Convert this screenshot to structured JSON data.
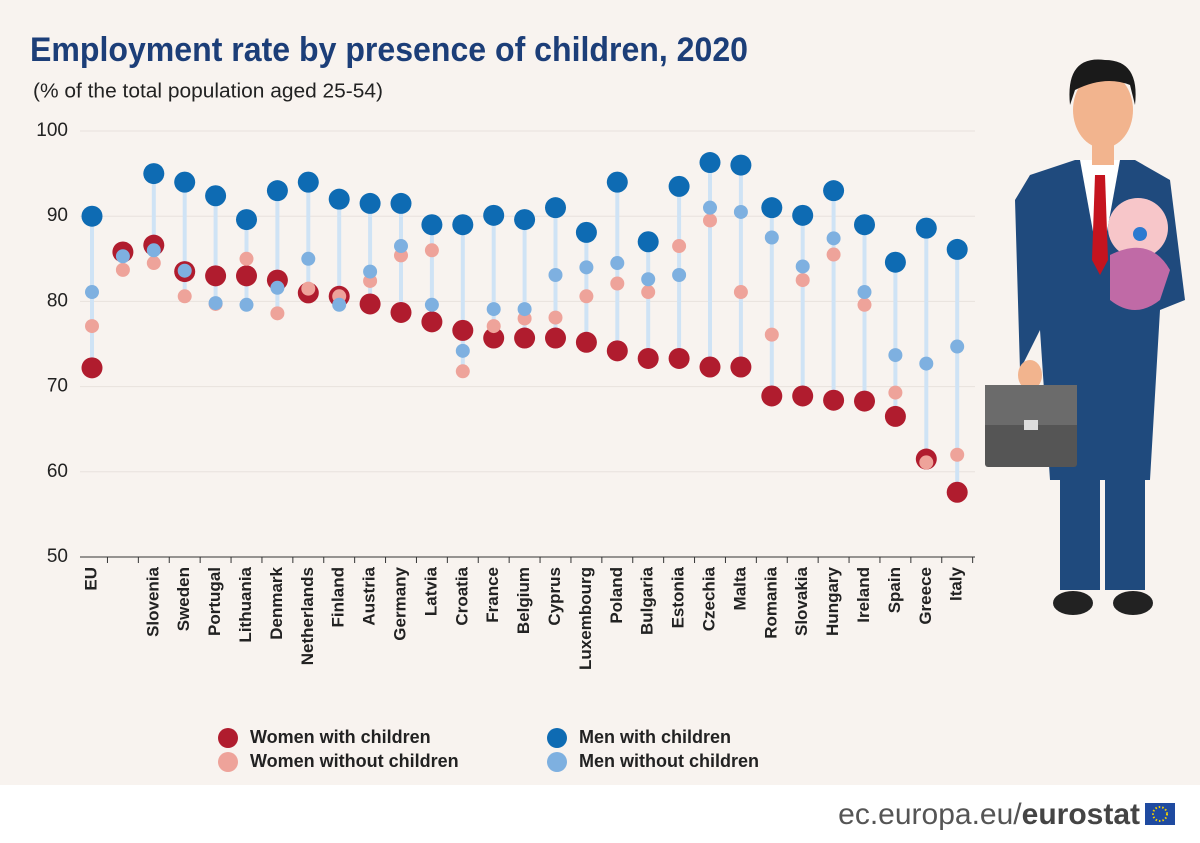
{
  "chart_data": {
    "type": "dot",
    "title": "Employment rate by presence of children, 2020",
    "subtitle": "(% of the total population aged 25-54)",
    "categories": [
      "EU",
      null,
      "Slovenia",
      "Sweden",
      "Portugal",
      "Lithuania",
      "Denmark",
      "Netherlands",
      "Finland",
      "Austria",
      "Germany",
      "Latvia",
      "Croatia",
      "France",
      "Belgium",
      "Cyprus",
      "Luxembourg",
      "Poland",
      "Bulgaria",
      "Estonia",
      "Czechia",
      "Malta",
      "Romania",
      "Slovakia",
      "Hungary",
      "Ireland",
      "Spain",
      "Greece",
      "Italy"
    ],
    "series": [
      {
        "name": "Women with children",
        "color": "#b01c2e",
        "values": [
          72.2,
          85.8,
          86.6,
          83.5,
          83.0,
          83.0,
          82.5,
          81.0,
          80.6,
          79.7,
          78.7,
          77.6,
          76.6,
          75.7,
          75.7,
          75.7,
          75.2,
          74.2,
          73.3,
          73.3,
          72.3,
          72.3,
          68.9,
          68.9,
          68.4,
          68.3,
          66.5,
          61.5,
          57.6
        ]
      },
      {
        "name": "Women without children",
        "color": "#eea39a",
        "values": [
          77.1,
          83.7,
          84.5,
          80.6,
          79.7,
          85.0,
          78.6,
          81.5,
          80.6,
          82.4,
          85.4,
          86.0,
          71.8,
          77.1,
          78.0,
          78.1,
          80.6,
          82.1,
          81.1,
          86.5,
          89.5,
          81.1,
          76.1,
          82.5,
          85.5,
          79.6,
          69.3,
          61.1,
          62.0
        ]
      },
      {
        "name": "Men with children",
        "color": "#0e6bb3",
        "values": [
          90.0,
          null,
          95.0,
          94.0,
          92.4,
          89.6,
          93.0,
          94.0,
          92.0,
          91.5,
          91.5,
          89.0,
          89.0,
          90.1,
          89.6,
          91.0,
          88.1,
          94.0,
          87.0,
          93.5,
          96.3,
          96.0,
          91.0,
          90.1,
          93.0,
          89.0,
          84.6,
          88.6,
          86.1
        ]
      },
      {
        "name": "Men without children",
        "color": "#7eb0e0",
        "values": [
          81.1,
          85.3,
          86.0,
          83.6,
          79.8,
          79.6,
          81.6,
          85.0,
          79.6,
          83.5,
          86.5,
          79.6,
          74.2,
          79.1,
          79.1,
          83.1,
          84.0,
          84.5,
          82.6,
          83.1,
          91.0,
          90.5,
          87.5,
          84.1,
          87.4,
          81.1,
          73.7,
          72.7,
          74.7
        ]
      }
    ],
    "ylim": [
      50,
      100
    ],
    "yticks": [
      50,
      60,
      70,
      80,
      90,
      100
    ],
    "grid": true
  },
  "footer": {
    "site": "ec.europa.eu/",
    "brand": "eurostat"
  }
}
